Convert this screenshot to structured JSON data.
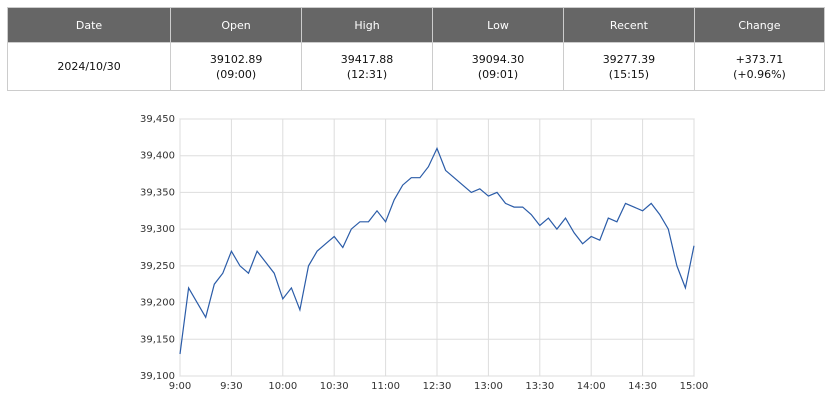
{
  "table": {
    "header": [
      "Date",
      "Open",
      "High",
      "Low",
      "Recent",
      "Change"
    ],
    "rows": [
      [
        [
          "2024/10/30"
        ],
        [
          "39102.89",
          "(09:00)"
        ],
        [
          "39417.88",
          "(12:31)"
        ],
        [
          "39094.30",
          "(09:01)"
        ],
        [
          "39277.39",
          "(15:15)"
        ],
        [
          "+373.71",
          "(+0.96%)"
        ]
      ]
    ]
  },
  "chart_data": {
    "type": "line",
    "x": [
      "9:00",
      null,
      null,
      null,
      null,
      null,
      "9:30",
      null,
      null,
      null,
      null,
      null,
      "10:00",
      null,
      null,
      null,
      null,
      null,
      "10:30",
      null,
      null,
      null,
      null,
      null,
      "11:00",
      null,
      null,
      null,
      null,
      null,
      "12:30",
      null,
      null,
      null,
      null,
      null,
      "13:00",
      null,
      null,
      null,
      null,
      null,
      "13:30",
      null,
      null,
      null,
      null,
      null,
      "14:00",
      null,
      null,
      null,
      null,
      null,
      "14:30",
      null,
      null,
      null,
      null,
      null,
      "15:00"
    ],
    "series": [
      {
        "color": "#2b5ca8",
        "values": [
          39130,
          39220,
          39200,
          39180,
          39225,
          39240,
          39270,
          39250,
          39240,
          39270,
          39255,
          39240,
          39205,
          39220,
          39190,
          39250,
          39270,
          39280,
          39290,
          39275,
          39300,
          39310,
          39310,
          39325,
          39310,
          39340,
          39360,
          39370,
          39370,
          39385,
          39410,
          39380,
          39370,
          39360,
          39350,
          39355,
          39345,
          39350,
          39335,
          39330,
          39330,
          39320,
          39305,
          39315,
          39300,
          39315,
          39295,
          39280,
          39290,
          39285,
          39315,
          39310,
          39335,
          39330,
          39325,
          39335,
          39320,
          39300,
          39250,
          39220,
          39277.39
        ]
      }
    ],
    "ylim": [
      39100,
      39450
    ],
    "yticks": [
      {
        "value": 39100,
        "label": "39,100"
      },
      {
        "value": 39150,
        "label": "39,150"
      },
      {
        "value": 39200,
        "label": "39,200"
      },
      {
        "value": 39250,
        "label": "39,250"
      },
      {
        "value": 39300,
        "label": "39,300"
      },
      {
        "value": 39350,
        "label": "39,350"
      },
      {
        "value": 39400,
        "label": "39,400"
      },
      {
        "value": 39450,
        "label": "39,450"
      }
    ],
    "grid": true
  }
}
